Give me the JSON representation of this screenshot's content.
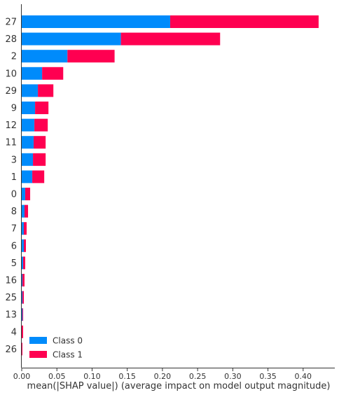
{
  "chart_data": {
    "type": "bar",
    "orientation": "horizontal",
    "stacked": true,
    "categories": [
      "27",
      "28",
      "2",
      "10",
      "29",
      "9",
      "12",
      "11",
      "3",
      "1",
      "0",
      "8",
      "7",
      "6",
      "5",
      "16",
      "25",
      "13",
      "4",
      "26"
    ],
    "series": [
      {
        "name": "Class 0",
        "color": "#008bfb",
        "values": [
          0.211,
          0.141,
          0.065,
          0.029,
          0.023,
          0.019,
          0.018,
          0.017,
          0.016,
          0.015,
          0.005,
          0.004,
          0.003,
          0.003,
          0.002,
          0.001,
          0.001,
          0.001,
          0.0,
          0.0
        ]
      },
      {
        "name": "Class 1",
        "color": "#ff0051",
        "values": [
          0.211,
          0.141,
          0.067,
          0.03,
          0.022,
          0.019,
          0.019,
          0.017,
          0.018,
          0.017,
          0.007,
          0.005,
          0.004,
          0.003,
          0.003,
          0.003,
          0.002,
          0.001,
          0.002,
          0.001
        ]
      }
    ],
    "xlabel": "mean(|SHAP value|) (average impact on model output magnitude)",
    "xlim": [
      0.0,
      0.445
    ],
    "xticks": [
      "0.00",
      "0.05",
      "0.10",
      "0.15",
      "0.20",
      "0.25",
      "0.30",
      "0.35",
      "0.40"
    ],
    "grid": false,
    "legend_position": "bottom-left"
  }
}
